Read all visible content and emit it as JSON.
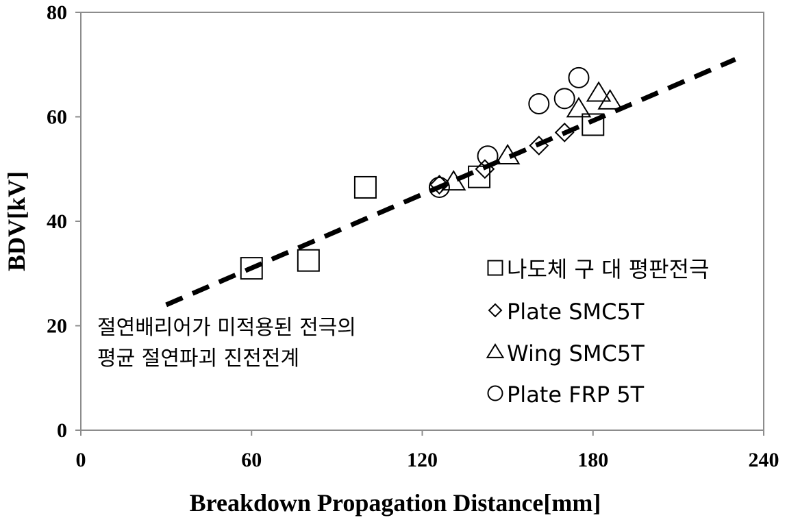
{
  "chart_data": {
    "type": "scatter",
    "xlabel": "Breakdown Propagation Distance[mm]",
    "ylabel": "BDV[kV]",
    "xlim": [
      0,
      240
    ],
    "ylim": [
      0,
      80
    ],
    "xticks": [
      "0",
      "60",
      "120",
      "180",
      "240"
    ],
    "yticks": [
      "0",
      "20",
      "40",
      "60",
      "80"
    ],
    "grid": false,
    "legend_position": "right",
    "series": [
      {
        "name": "나도체 구 대 평판전극",
        "marker": "square",
        "points": [
          [
            60,
            31
          ],
          [
            80,
            32.5
          ],
          [
            100,
            46.5
          ],
          [
            140,
            48.5
          ],
          [
            180,
            58.5
          ]
        ]
      },
      {
        "name": "Plate SMC5T",
        "marker": "diamond",
        "points": [
          [
            126,
            47
          ],
          [
            142,
            50
          ],
          [
            161,
            54.5
          ],
          [
            170,
            57
          ]
        ]
      },
      {
        "name": "Wing SMC5T",
        "marker": "triangle",
        "points": [
          [
            131,
            47.5
          ],
          [
            150,
            52.5
          ],
          [
            175,
            61.5
          ],
          [
            182,
            64.5
          ],
          [
            186,
            63
          ]
        ]
      },
      {
        "name": "Plate FRP 5T",
        "marker": "circle",
        "points": [
          [
            126,
            46.5
          ],
          [
            143,
            52.5
          ],
          [
            161,
            62.5
          ],
          [
            170,
            63.5
          ],
          [
            175,
            67.5
          ]
        ]
      }
    ],
    "trendline": {
      "style": "dashed",
      "x": [
        30,
        230
      ],
      "y": [
        24,
        71
      ]
    },
    "annotation": [
      "절연배리어가 미적용된 전극의",
      "평균 절연파괴 진전전계"
    ]
  }
}
